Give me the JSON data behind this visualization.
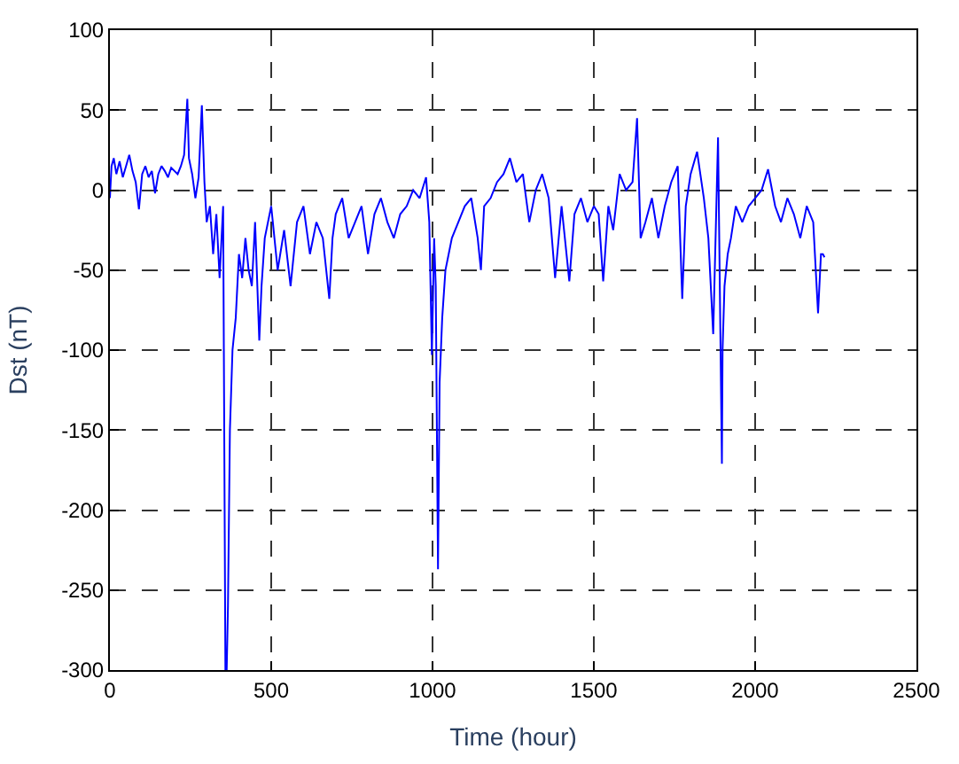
{
  "chart_data": {
    "type": "line",
    "xlabel": "Time (hour)",
    "ylabel": "Dst (nT)",
    "x": [
      0,
      5,
      12,
      20,
      30,
      40,
      50,
      60,
      70,
      80,
      90,
      100,
      110,
      120,
      130,
      140,
      150,
      160,
      170,
      180,
      190,
      200,
      210,
      220,
      230,
      240,
      245,
      255,
      265,
      275,
      285,
      293,
      300,
      310,
      320,
      330,
      340,
      351,
      358,
      362,
      366,
      372,
      380,
      390,
      400,
      410,
      420,
      430,
      440,
      450,
      463,
      470,
      480,
      500,
      520,
      540,
      560,
      580,
      600,
      620,
      640,
      660,
      680,
      690,
      700,
      720,
      740,
      760,
      780,
      800,
      820,
      840,
      860,
      880,
      900,
      920,
      940,
      960,
      980,
      990,
      998,
      1005,
      1010,
      1017,
      1022,
      1030,
      1040,
      1050,
      1060,
      1080,
      1100,
      1120,
      1140,
      1150,
      1160,
      1180,
      1200,
      1220,
      1240,
      1260,
      1280,
      1300,
      1320,
      1340,
      1360,
      1380,
      1400,
      1424,
      1440,
      1460,
      1480,
      1500,
      1515,
      1529,
      1545,
      1560,
      1580,
      1600,
      1620,
      1634,
      1645,
      1660,
      1680,
      1700,
      1720,
      1740,
      1760,
      1774,
      1785,
      1800,
      1820,
      1841,
      1855,
      1870,
      1885,
      1897,
      1899,
      1905,
      1915,
      1925,
      1940,
      1960,
      1980,
      2000,
      2020,
      2040,
      2062,
      2080,
      2100,
      2120,
      2140,
      2160,
      2180,
      2195,
      2204,
      2210,
      2215
    ],
    "series": [
      {
        "color": "#0000ff",
        "values": [
          -5,
          15,
          20,
          10,
          18,
          8,
          15,
          22,
          12,
          5,
          -12,
          10,
          15,
          8,
          12,
          -2,
          10,
          15,
          12,
          8,
          14,
          12,
          10,
          15,
          22,
          57,
          20,
          10,
          -5,
          8,
          53,
          5,
          -20,
          -10,
          -40,
          -15,
          -55,
          -10,
          -300,
          -300,
          -260,
          -150,
          -100,
          -80,
          -40,
          -55,
          -30,
          -50,
          -60,
          -20,
          -94,
          -60,
          -30,
          -10,
          -50,
          -25,
          -60,
          -20,
          -10,
          -40,
          -20,
          -30,
          -68,
          -30,
          -15,
          -5,
          -30,
          -20,
          -10,
          -40,
          -15,
          -5,
          -20,
          -30,
          -15,
          -10,
          0,
          -5,
          8,
          -20,
          -103,
          -30,
          -60,
          -237,
          -120,
          -80,
          -50,
          -40,
          -30,
          -20,
          -10,
          -5,
          -30,
          -50,
          -10,
          -5,
          5,
          10,
          20,
          5,
          10,
          -20,
          0,
          10,
          -5,
          -55,
          -10,
          -57,
          -15,
          -5,
          -20,
          -10,
          -15,
          -57,
          -10,
          -25,
          10,
          0,
          5,
          45,
          -30,
          -20,
          -5,
          -30,
          -10,
          5,
          15,
          -68,
          -10,
          10,
          24,
          -5,
          -30,
          -90,
          33,
          -171,
          -100,
          -60,
          -40,
          -30,
          -10,
          -20,
          -10,
          -5,
          0,
          13,
          -10,
          -20,
          -5,
          -15,
          -30,
          -10,
          -20,
          -77,
          -40,
          -40,
          -42
        ]
      }
    ],
    "xlim": [
      0,
      2500
    ],
    "xticks": [
      0,
      500,
      1000,
      1500,
      2000,
      2500
    ],
    "ylim": [
      -300,
      100
    ],
    "yticks": [
      -300,
      -250,
      -200,
      -150,
      -100,
      -50,
      0,
      50,
      100
    ],
    "grid": true,
    "line_style": "solid",
    "legend": false
  }
}
